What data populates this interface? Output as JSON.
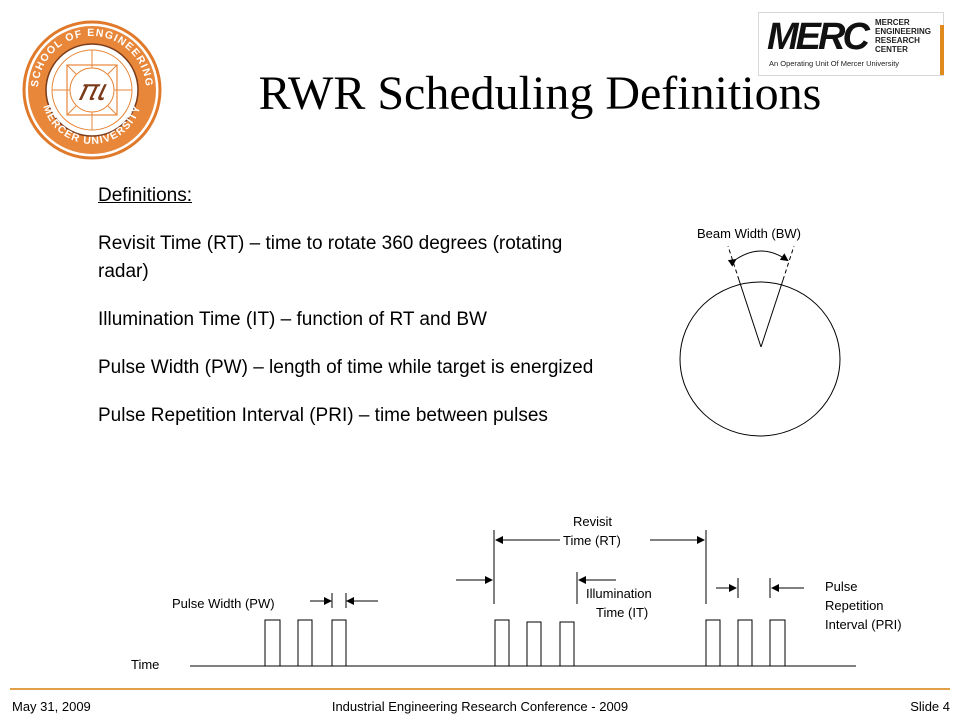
{
  "slide": {
    "title": "RWR Scheduling Definitions"
  },
  "seal": {
    "ring_text_top": "SCHOOL OF ENGINEERING",
    "ring_text_bottom": "MERCER UNIVERSITY",
    "center_glyph": "𝜋𝜄",
    "icon": "school-seal"
  },
  "logo": {
    "word": "MERC",
    "lines": [
      "MERCER",
      "ENGINEERING",
      "RESEARCH",
      "CENTER"
    ],
    "tagline": "An Operating Unit Of Mercer University",
    "accent": "#e08a1e"
  },
  "definitions": {
    "heading": "Definitions:",
    "items": [
      "Revisit Time (RT) – time to rotate 360 degrees (rotating radar)",
      "Illumination Time (IT) – function of RT and BW",
      "Pulse Width (PW) – length of time while target is energized",
      "Pulse Repetition Interval (PRI) – time between pulses"
    ]
  },
  "beam_diagram": {
    "label": "Beam Width (BW)"
  },
  "timing_diagram": {
    "pulse_width_label": "Pulse Width (PW)",
    "revisit_label_1": "Revisit",
    "revisit_label_2": "Time (RT)",
    "illum_label_1": "Illumination",
    "illum_label_2": "Time (IT)",
    "pri_label_1": "Pulse",
    "pri_label_2": "Repetition",
    "pri_label_3": "Interval (PRI)",
    "axis_label": "Time"
  },
  "footer": {
    "date": "May 31, 2009",
    "conference": "Industrial Engineering Research Conference - 2009",
    "slide_number": "Slide 4",
    "accent": "#e3a04a"
  }
}
